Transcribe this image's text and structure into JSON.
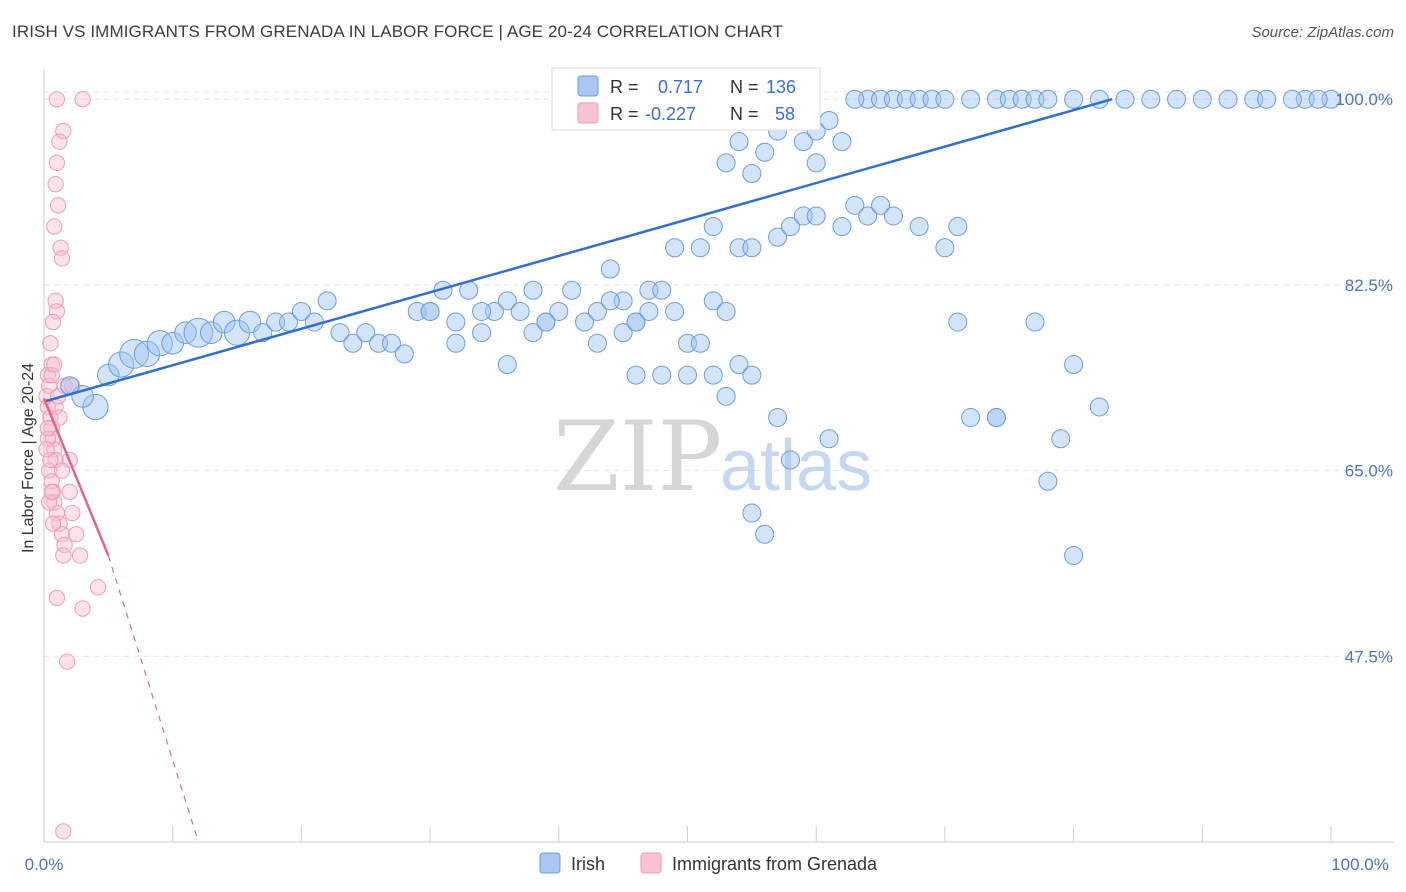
{
  "title": "IRISH VS IMMIGRANTS FROM GRENADA IN LABOR FORCE | AGE 20-24 CORRELATION CHART",
  "source": "Source: ZipAtlas.com",
  "watermark": {
    "zip": "ZIP",
    "atlas": "atlas"
  },
  "colors": {
    "irish": "#6a9de0",
    "irish_line": "#2f6fcf",
    "grenada": "#f19ab6",
    "grenada_line": "#e0668f",
    "tick": "#4a74c9"
  },
  "chart_data": {
    "type": "scatter",
    "title": "IRISH VS IMMIGRANTS FROM GRENADA IN LABOR FORCE | AGE 20-24 CORRELATION CHART",
    "xlabel": "",
    "ylabel": "In Labor Force | Age 20-24",
    "xlim": [
      0,
      100
    ],
    "ylim": [
      30,
      102
    ],
    "x_tick_labels": [
      "0.0%",
      "100.0%"
    ],
    "y_ticks": [
      47.5,
      65.0,
      82.5,
      100.0
    ],
    "y_tick_labels": [
      "47.5%",
      "65.0%",
      "82.5%",
      "100.0%"
    ],
    "legend": {
      "irish": {
        "r_label": "R =",
        "r_value": "0.717",
        "n_label": "N =",
        "n_value": "136"
      },
      "grenada": {
        "r_label": "R =",
        "r_value": "-0.227",
        "n_label": "N =",
        "n_value": "58"
      }
    },
    "series": [
      {
        "name": "Irish",
        "trend": {
          "x0": 0,
          "y0": 71.5,
          "x1": 83,
          "y1": 100.0
        },
        "points": [
          [
            4,
            71,
            14
          ],
          [
            3,
            72,
            12
          ],
          [
            2,
            73,
            10
          ],
          [
            5,
            74,
            12
          ],
          [
            6,
            75,
            14
          ],
          [
            7,
            76,
            16
          ],
          [
            8,
            76,
            14
          ],
          [
            9,
            77,
            14
          ],
          [
            10,
            77,
            12
          ],
          [
            11,
            78,
            12
          ],
          [
            12,
            78,
            16
          ],
          [
            13,
            78,
            12
          ],
          [
            14,
            79,
            12
          ],
          [
            15,
            78,
            14
          ],
          [
            16,
            79,
            12
          ],
          [
            17,
            78,
            10
          ],
          [
            18,
            79,
            10
          ],
          [
            19,
            79,
            10
          ],
          [
            20,
            80,
            10
          ],
          [
            21,
            79,
            10
          ],
          [
            22,
            81,
            10
          ],
          [
            23,
            78,
            10
          ],
          [
            24,
            77,
            10
          ],
          [
            25,
            78,
            10
          ],
          [
            26,
            77,
            10
          ],
          [
            27,
            77,
            10
          ],
          [
            28,
            76,
            10
          ],
          [
            29,
            80,
            10
          ],
          [
            30,
            80,
            10
          ],
          [
            31,
            82,
            10
          ],
          [
            32,
            79,
            10
          ],
          [
            33,
            82,
            10
          ],
          [
            34,
            78,
            10
          ],
          [
            35,
            80,
            10
          ],
          [
            36,
            81,
            10
          ],
          [
            37,
            80,
            10
          ],
          [
            38,
            82,
            10
          ],
          [
            39,
            79,
            10
          ],
          [
            40,
            80,
            10
          ],
          [
            41,
            82,
            10
          ],
          [
            42,
            79,
            10
          ],
          [
            43,
            80,
            10
          ],
          [
            44,
            84,
            10
          ],
          [
            45,
            81,
            10
          ],
          [
            46,
            79,
            10
          ],
          [
            47,
            82,
            10
          ],
          [
            48,
            82,
            10
          ],
          [
            49,
            80,
            10
          ],
          [
            50,
            77,
            10
          ],
          [
            51,
            77,
            10
          ],
          [
            52,
            74,
            10
          ],
          [
            53,
            72,
            10
          ],
          [
            54,
            75,
            10
          ],
          [
            55,
            74,
            10
          ],
          [
            38,
            78,
            10
          ],
          [
            36,
            75,
            10
          ],
          [
            32,
            77,
            10
          ],
          [
            30,
            80,
            10
          ],
          [
            34,
            80,
            10
          ],
          [
            39,
            79,
            10
          ],
          [
            44,
            81,
            10
          ],
          [
            45,
            78,
            10
          ],
          [
            46,
            79,
            10
          ],
          [
            47,
            80,
            10
          ],
          [
            49,
            86,
            10
          ],
          [
            51,
            86,
            10
          ],
          [
            52,
            88,
            10
          ],
          [
            54,
            86,
            10
          ],
          [
            55,
            86,
            10
          ],
          [
            57,
            87,
            10
          ],
          [
            58,
            88,
            10
          ],
          [
            59,
            89,
            10
          ],
          [
            60,
            89,
            10
          ],
          [
            62,
            88,
            10
          ],
          [
            63,
            90,
            10
          ],
          [
            64,
            89,
            10
          ],
          [
            65,
            90,
            10
          ],
          [
            66,
            89,
            10
          ],
          [
            68,
            88,
            10
          ],
          [
            70,
            86,
            10
          ],
          [
            71,
            88,
            10
          ],
          [
            43,
            77,
            10
          ],
          [
            46,
            74,
            10
          ],
          [
            48,
            74,
            10
          ],
          [
            50,
            74,
            10
          ],
          [
            52,
            81,
            10
          ],
          [
            53,
            80,
            10
          ],
          [
            57,
            70,
            10
          ],
          [
            61,
            68,
            10
          ],
          [
            72,
            70,
            10
          ],
          [
            74,
            70,
            10
          ],
          [
            55,
            61,
            10
          ],
          [
            56,
            59,
            10
          ],
          [
            58,
            66,
            10
          ],
          [
            71,
            79,
            10
          ],
          [
            74,
            70,
            10
          ],
          [
            77,
            79,
            10
          ],
          [
            80,
            75,
            10
          ],
          [
            82,
            71,
            10
          ],
          [
            79,
            68,
            10
          ],
          [
            78,
            64,
            10
          ],
          [
            80,
            57,
            10
          ],
          [
            60,
            97,
            10
          ],
          [
            61,
            98,
            10
          ],
          [
            62,
            96,
            10
          ],
          [
            64,
            100,
            10
          ],
          [
            65,
            100,
            10
          ],
          [
            66,
            100,
            10
          ],
          [
            67,
            100,
            10
          ],
          [
            68,
            100,
            10
          ],
          [
            69,
            100,
            10
          ],
          [
            70,
            100,
            10
          ],
          [
            72,
            100,
            10
          ],
          [
            74,
            100,
            10
          ],
          [
            75,
            100,
            10
          ],
          [
            76,
            100,
            10
          ],
          [
            77,
            100,
            10
          ],
          [
            78,
            100,
            10
          ],
          [
            80,
            100,
            10
          ],
          [
            82,
            100,
            10
          ],
          [
            84,
            100,
            10
          ],
          [
            86,
            100,
            10
          ],
          [
            88,
            100,
            10
          ],
          [
            90,
            100,
            10
          ],
          [
            92,
            100,
            10
          ],
          [
            94,
            100,
            10
          ],
          [
            95,
            100,
            10
          ],
          [
            98,
            100,
            10
          ],
          [
            100,
            100,
            10
          ],
          [
            63,
            100,
            10
          ],
          [
            58,
            98,
            10
          ],
          [
            57,
            97,
            10
          ],
          [
            59,
            96,
            10
          ],
          [
            54,
            96,
            10
          ],
          [
            53,
            94,
            10
          ],
          [
            55,
            93,
            10
          ],
          [
            56,
            95,
            10
          ],
          [
            60,
            94,
            10
          ],
          [
            99,
            100,
            10
          ],
          [
            97,
            100,
            10
          ]
        ]
      },
      {
        "name": "Immigrants from Grenada",
        "trend": {
          "x0": 0,
          "y0": 71.8,
          "x1": 5,
          "y1": 57.0
        },
        "trend_dashed": {
          "x0": 5,
          "y0": 57.0,
          "x1": 12,
          "y1": 30.0
        },
        "points": [
          [
            1,
            100,
            9
          ],
          [
            3,
            100,
            9
          ],
          [
            1.5,
            97,
            9
          ],
          [
            1.2,
            96,
            9
          ],
          [
            1.0,
            94,
            9
          ],
          [
            0.9,
            92,
            9
          ],
          [
            1.1,
            90,
            9
          ],
          [
            0.8,
            88,
            9
          ],
          [
            1.3,
            86,
            9
          ],
          [
            1.4,
            85,
            9
          ],
          [
            0.9,
            81,
            9
          ],
          [
            1.0,
            80,
            9
          ],
          [
            0.7,
            79,
            9
          ],
          [
            0.5,
            77,
            9
          ],
          [
            0.6,
            75,
            9
          ],
          [
            0.3,
            74,
            9
          ],
          [
            0.4,
            73,
            9
          ],
          [
            0.2,
            72,
            9
          ],
          [
            0.3,
            71,
            9
          ],
          [
            0.5,
            70,
            9
          ],
          [
            0.6,
            69,
            9
          ],
          [
            0.7,
            68,
            9
          ],
          [
            0.8,
            67,
            9
          ],
          [
            0.9,
            66,
            9
          ],
          [
            0.4,
            65,
            9
          ],
          [
            0.6,
            64,
            9
          ],
          [
            0.7,
            63,
            9
          ],
          [
            0.8,
            62,
            9
          ],
          [
            1.0,
            61,
            9
          ],
          [
            1.2,
            60,
            9
          ],
          [
            1.4,
            59,
            9
          ],
          [
            1.6,
            58,
            9
          ],
          [
            2.0,
            63,
            9
          ],
          [
            2.2,
            61,
            9
          ],
          [
            2.5,
            59,
            9
          ],
          [
            2.8,
            57,
            9
          ],
          [
            1.0,
            53,
            9
          ],
          [
            3.0,
            52,
            9
          ],
          [
            4.2,
            54,
            9
          ],
          [
            1.8,
            47,
            9
          ],
          [
            1.5,
            31,
            9
          ],
          [
            0.3,
            68,
            9
          ],
          [
            0.5,
            66,
            9
          ],
          [
            0.2,
            67,
            9
          ],
          [
            0.9,
            71,
            9
          ],
          [
            1.1,
            72,
            9
          ],
          [
            1.6,
            73,
            9
          ],
          [
            2.2,
            73,
            9
          ],
          [
            0.4,
            62,
            9
          ],
          [
            0.7,
            60,
            9
          ],
          [
            1.5,
            57,
            9
          ],
          [
            0.6,
            74,
            9
          ],
          [
            0.8,
            75,
            9
          ],
          [
            1.2,
            70,
            9
          ],
          [
            0.3,
            69,
            9
          ],
          [
            2.0,
            66,
            9
          ],
          [
            1.4,
            65,
            9
          ],
          [
            0.6,
            63,
            9
          ]
        ]
      }
    ]
  },
  "bottom_legend": {
    "irish": "Irish",
    "grenada": "Immigrants from Grenada"
  }
}
